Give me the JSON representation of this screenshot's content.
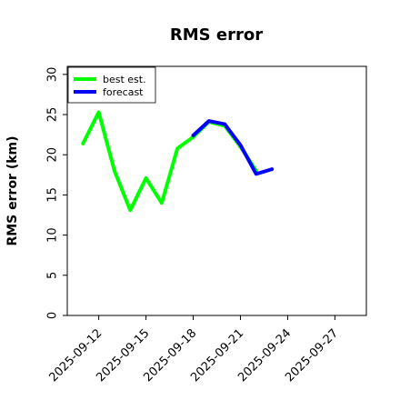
{
  "chart_data": {
    "type": "line",
    "title": "RMS error",
    "xlabel": "",
    "ylabel": "RMS error (km)",
    "ylim": [
      0,
      31
    ],
    "xlim": [
      "2025-09-10",
      "2025-09-29"
    ],
    "yticks": [
      0,
      5,
      10,
      15,
      20,
      25,
      30
    ],
    "xticks": [
      "2025-09-12",
      "2025-09-15",
      "2025-09-18",
      "2025-09-21",
      "2025-09-24",
      "2025-09-27"
    ],
    "highlighted_xtick": "2025-09-18",
    "highlight_color": "#228b22",
    "grid": false,
    "legend_position": "top-left",
    "series": [
      {
        "name": "best est.",
        "color": "#00ff00",
        "points": [
          {
            "x": "2025-09-11",
            "y": 21.4
          },
          {
            "x": "2025-09-12",
            "y": 25.3
          },
          {
            "x": "2025-09-13",
            "y": 18.0
          },
          {
            "x": "2025-09-14",
            "y": 13.1
          },
          {
            "x": "2025-09-15",
            "y": 17.1
          },
          {
            "x": "2025-09-16",
            "y": 14.0
          },
          {
            "x": "2025-09-17",
            "y": 20.8
          },
          {
            "x": "2025-09-18",
            "y": 22.2
          },
          {
            "x": "2025-09-19",
            "y": 24.1
          },
          {
            "x": "2025-09-20",
            "y": 23.6
          },
          {
            "x": "2025-09-21",
            "y": 21.0
          },
          {
            "x": "2025-09-22",
            "y": 18.0
          }
        ]
      },
      {
        "name": "forecast",
        "color": "#0000ff",
        "points": [
          {
            "x": "2025-09-18",
            "y": 22.4
          },
          {
            "x": "2025-09-19",
            "y": 24.2
          },
          {
            "x": "2025-09-20",
            "y": 23.8
          },
          {
            "x": "2025-09-21",
            "y": 21.2
          },
          {
            "x": "2025-09-22",
            "y": 17.6
          },
          {
            "x": "2025-09-23",
            "y": 18.2
          }
        ]
      }
    ]
  }
}
